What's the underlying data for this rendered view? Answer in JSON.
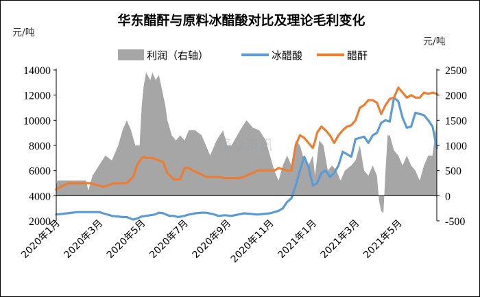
{
  "chart_data": {
    "type": "area",
    "title": "华东醋酐与原料冰醋酸对比及理论毛利变化",
    "left_unit": "元/吨",
    "right_unit": "元/吨",
    "legend": [
      "利润（右轴）",
      "冰醋酸",
      "醋酐"
    ],
    "legend_position": "top",
    "watermark": "隆众资讯",
    "grid": false,
    "colors": {
      "profit": "#a6a6a6",
      "acetic": "#5b9bd5",
      "anhydride": "#ed7d31"
    },
    "x_labels": [
      "2020年1月",
      "2020年3月",
      "2020年5月",
      "2020年7月",
      "2020年9月",
      "2020年11月",
      "2021年1月",
      "2021年3月",
      "2021年5月"
    ],
    "x_label_pos": [
      0,
      2,
      4,
      6,
      8,
      10,
      12,
      14,
      16
    ],
    "x_range": [
      0,
      17.8
    ],
    "y_left": {
      "min": 2000,
      "max": 14000,
      "ticks": [
        2000,
        4000,
        6000,
        8000,
        10000,
        12000,
        14000
      ]
    },
    "y_right": {
      "min": -500,
      "max": 2500,
      "ticks": [
        -500,
        0,
        500,
        1000,
        1500,
        2000,
        2500
      ]
    },
    "series": [
      {
        "name": "利润（右轴）",
        "axis": "right",
        "kind": "area",
        "x": [
          0,
          0.05,
          0.5,
          1.0,
          1.4,
          1.5,
          1.7,
          2.0,
          2.3,
          2.6,
          2.9,
          3.1,
          3.3,
          3.5,
          3.7,
          3.9,
          4.0,
          4.1,
          4.2,
          4.4,
          4.5,
          4.65,
          4.8,
          4.9,
          5.1,
          5.2,
          5.4,
          5.6,
          5.8,
          6.0,
          6.2,
          6.5,
          6.8,
          7.0,
          7.2,
          7.5,
          7.8,
          8.0,
          8.2,
          8.6,
          8.9,
          9.2,
          9.5,
          9.8,
          10.0,
          10.2,
          10.4,
          10.6,
          10.8,
          11.0,
          11.2,
          11.4,
          11.6,
          11.8,
          12.0,
          12.1,
          12.3,
          12.5,
          12.7,
          12.9,
          13.1,
          13.3,
          13.5,
          13.8,
          14.0,
          14.2,
          14.4,
          14.6,
          14.8,
          15.0,
          15.1,
          15.2,
          15.3,
          15.4,
          15.5,
          15.6,
          15.8,
          16.0,
          16.2,
          16.4,
          16.6,
          16.8,
          17.0,
          17.2,
          17.4,
          17.6,
          17.8
        ],
        "y": [
          200,
          300,
          300,
          300,
          300,
          100,
          400,
          600,
          800,
          700,
          1000,
          1300,
          1500,
          1300,
          1000,
          1000,
          1800,
          2200,
          2450,
          2300,
          2450,
          2300,
          2400,
          2200,
          1800,
          1500,
          1200,
          1100,
          1200,
          1100,
          1300,
          1300,
          1200,
          1000,
          800,
          1100,
          1300,
          1000,
          1000,
          1300,
          1500,
          1350,
          1300,
          1100,
          800,
          500,
          300,
          600,
          800,
          600,
          1100,
          1000,
          700,
          600,
          800,
          400,
          1100,
          1000,
          500,
          600,
          500,
          300,
          500,
          600,
          700,
          1000,
          500,
          400,
          600,
          400,
          -100,
          -300,
          -350,
          500,
          1200,
          1200,
          900,
          800,
          600,
          800,
          600,
          500,
          300,
          600,
          800,
          800,
          1500
        ]
      },
      {
        "name": "冰醋酸",
        "axis": "left",
        "kind": "line",
        "x": [
          0,
          0.5,
          1.0,
          1.4,
          1.6,
          2.0,
          2.3,
          2.6,
          2.8,
          2.9,
          3.1,
          3.3,
          3.6,
          3.8,
          4.0,
          4.2,
          4.4,
          4.6,
          4.8,
          5.0,
          5.3,
          5.5,
          5.7,
          6.0,
          6.2,
          6.5,
          6.8,
          7.0,
          7.3,
          7.6,
          7.9,
          8.2,
          8.5,
          8.8,
          9.1,
          9.4,
          9.7,
          10.0,
          10.2,
          10.4,
          10.6,
          10.8,
          11.0,
          11.2,
          11.4,
          11.6,
          11.8,
          12.0,
          12.2,
          12.4,
          12.6,
          12.8,
          13.0,
          13.2,
          13.4,
          13.6,
          13.8,
          14.0,
          14.2,
          14.4,
          14.6,
          14.8,
          15.0,
          15.2,
          15.4,
          15.6,
          15.8,
          16.0,
          16.2,
          16.4,
          16.6,
          16.8,
          17.0,
          17.2,
          17.4,
          17.6,
          17.8
        ],
        "y": [
          2500,
          2600,
          2700,
          2700,
          2700,
          2700,
          2550,
          2400,
          2350,
          2350,
          2300,
          2300,
          2100,
          2200,
          2350,
          2400,
          2450,
          2500,
          2650,
          2600,
          2400,
          2400,
          2300,
          2400,
          2500,
          2600,
          2650,
          2650,
          2550,
          2400,
          2450,
          2400,
          2500,
          2600,
          2550,
          2500,
          2550,
          2600,
          2700,
          2800,
          3000,
          3500,
          3800,
          4800,
          6000,
          7100,
          6300,
          4800,
          5000,
          5800,
          6000,
          5500,
          5800,
          6400,
          7500,
          7300,
          7100,
          8500,
          8600,
          8700,
          8200,
          8800,
          9000,
          9800,
          10000,
          9900,
          11800,
          11500,
          10200,
          9400,
          9500,
          10600,
          10500,
          10400,
          10000,
          9500,
          7800
        ]
      },
      {
        "name": "醋酐",
        "axis": "left",
        "kind": "line",
        "x": [
          0,
          0.3,
          0.6,
          1.0,
          1.4,
          1.6,
          2.0,
          2.2,
          2.4,
          2.7,
          3.0,
          3.3,
          3.6,
          3.8,
          4.0,
          4.1,
          4.2,
          4.5,
          4.8,
          5.0,
          5.2,
          5.5,
          5.8,
          6.0,
          6.2,
          6.5,
          6.8,
          7.0,
          7.3,
          7.6,
          7.9,
          8.2,
          8.5,
          8.8,
          9.0,
          9.2,
          9.4,
          9.6,
          9.8,
          10.0,
          10.2,
          10.4,
          10.6,
          10.8,
          11.0,
          11.2,
          11.4,
          11.6,
          11.8,
          12.0,
          12.1,
          12.2,
          12.4,
          12.6,
          12.8,
          13.0,
          13.2,
          13.4,
          13.6,
          13.8,
          14.0,
          14.2,
          14.4,
          14.6,
          14.8,
          15.0,
          15.2,
          15.4,
          15.6,
          15.8,
          16.0,
          16.2,
          16.4,
          16.6,
          16.8,
          17.0,
          17.2,
          17.4,
          17.6,
          17.8
        ],
        "y": [
          4500,
          4800,
          5000,
          5000,
          5000,
          5000,
          4800,
          4700,
          4800,
          5000,
          5000,
          5000,
          5500,
          6500,
          7000,
          7100,
          7000,
          7000,
          6800,
          6700,
          5800,
          5300,
          5300,
          6200,
          6200,
          5900,
          5700,
          5500,
          5500,
          5500,
          5400,
          5400,
          5400,
          5500,
          5700,
          5800,
          6000,
          6000,
          6000,
          6000,
          6000,
          6200,
          6100,
          6000,
          6000,
          8000,
          8800,
          8600,
          8200,
          7800,
          8300,
          9000,
          9500,
          9200,
          8800,
          8200,
          8800,
          9200,
          9500,
          9600,
          10000,
          11000,
          11200,
          11600,
          11600,
          11400,
          10500,
          11200,
          11700,
          11800,
          12600,
          12200,
          11800,
          12000,
          11800,
          11800,
          12200,
          12100,
          12200,
          12100
        ]
      }
    ]
  }
}
